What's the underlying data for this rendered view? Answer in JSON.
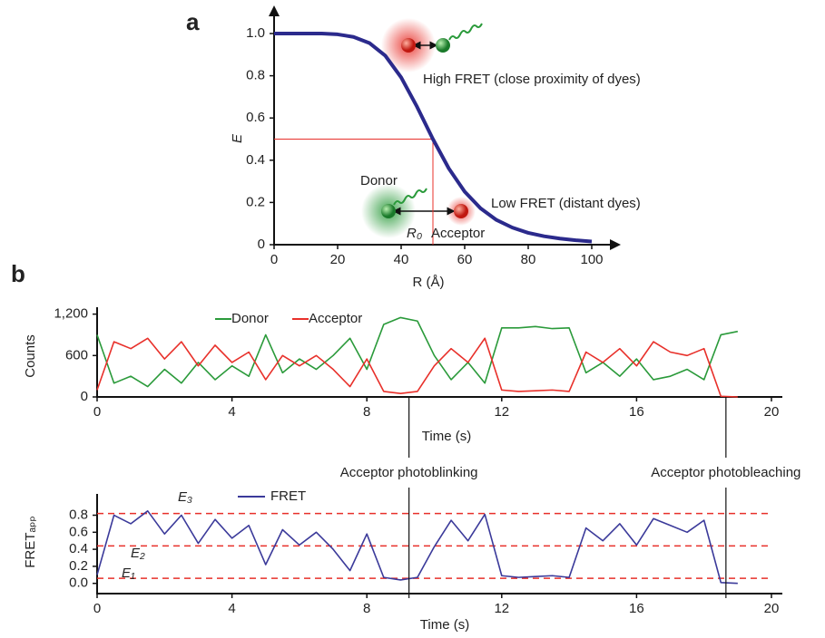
{
  "chart_data": [
    {
      "type": "line",
      "panel": "a",
      "x_label": "R (Å)",
      "y_label": "E",
      "x": [
        0,
        5,
        10,
        15,
        20,
        25,
        30,
        35,
        40,
        45,
        50,
        55,
        60,
        65,
        70,
        75,
        80,
        85,
        90,
        95,
        100
      ],
      "series": [
        {
          "name": "E",
          "color": "#2b2a8c",
          "values": [
            1,
            1,
            1,
            1,
            0.996,
            0.984,
            0.955,
            0.895,
            0.792,
            0.653,
            0.5,
            0.361,
            0.251,
            0.172,
            0.117,
            0.081,
            0.056,
            0.04,
            0.029,
            0.021,
            0.015
          ]
        }
      ],
      "xlim": [
        0,
        100
      ],
      "xticks": [
        0,
        20,
        40,
        60,
        80,
        100
      ],
      "ylim": [
        0,
        1
      ],
      "yticks": [
        0,
        0.2,
        0.4,
        0.6,
        0.8,
        {
          "value": 1,
          "label": "1.0"
        }
      ],
      "reference": {
        "x": 50,
        "y": 0.5,
        "color": "#e8302a"
      },
      "annotations": [
        "High FRET (close proximity of dyes)",
        "Donor",
        "Low FRET (distant dyes)",
        "R₀",
        "Acceptor"
      ]
    },
    {
      "type": "line",
      "panel": "b",
      "x_label": "Time (s)",
      "y_label": "Counts",
      "x": [
        0,
        0.5,
        1,
        1.5,
        2,
        2.5,
        3,
        3.5,
        4,
        4.5,
        5,
        5.5,
        6,
        6.5,
        7,
        7.5,
        8,
        8.5,
        9,
        9.5,
        10,
        10.5,
        11,
        11.5,
        12,
        12.5,
        13,
        13.5,
        14,
        14.5,
        15,
        15.5,
        16,
        16.5,
        17,
        17.5,
        18,
        18.5,
        19
      ],
      "series": [
        {
          "name": "Donor",
          "color": "#2a9a3a",
          "values": [
            900,
            200,
            300,
            150,
            400,
            200,
            500,
            250,
            450,
            300,
            900,
            350,
            550,
            400,
            600,
            850,
            400,
            1050,
            1150,
            1100,
            600,
            250,
            500,
            200,
            1000,
            1000,
            1020,
            990,
            1000,
            350,
            500,
            300,
            550,
            250,
            300,
            400,
            250,
            900,
            950
          ]
        },
        {
          "name": "Acceptor",
          "color": "#e8302a",
          "values": [
            100,
            800,
            700,
            850,
            550,
            800,
            450,
            750,
            500,
            650,
            250,
            600,
            450,
            600,
            400,
            150,
            550,
            80,
            50,
            80,
            450,
            700,
            500,
            850,
            100,
            80,
            90,
            100,
            80,
            650,
            500,
            700,
            450,
            800,
            650,
            600,
            700,
            10,
            0
          ]
        }
      ],
      "xlim": [
        0,
        20
      ],
      "xticks": [
        0,
        4,
        8,
        12,
        16,
        20
      ],
      "ylim": [
        0,
        1300
      ],
      "yticks": [
        0,
        600,
        {
          "value": 1200,
          "label": "1,200"
        }
      ],
      "annotations": [
        {
          "text": "Acceptor photoblinking",
          "x": 9.25
        },
        {
          "text": "Acceptor photobleaching",
          "x": 18.65
        }
      ]
    },
    {
      "type": "line",
      "x_label": "Time (s)",
      "y_label": "FRETₐₚₚ",
      "x": [
        0,
        0.5,
        1,
        1.5,
        2,
        2.5,
        3,
        3.5,
        4,
        4.5,
        5,
        5.5,
        6,
        6.5,
        7,
        7.5,
        8,
        8.5,
        9,
        9.5,
        10,
        10.5,
        11,
        11.5,
        12,
        12.5,
        13,
        13.5,
        14,
        14.5,
        15,
        15.5,
        16,
        16.5,
        17,
        17.5,
        18,
        18.5,
        19
      ],
      "series": [
        {
          "name": "FRET",
          "color": "#3b3a9a",
          "values": [
            0.1,
            0.8,
            0.7,
            0.85,
            0.58,
            0.8,
            0.47,
            0.75,
            0.53,
            0.68,
            0.22,
            0.63,
            0.45,
            0.6,
            0.4,
            0.15,
            0.58,
            0.07,
            0.04,
            0.07,
            0.43,
            0.74,
            0.5,
            0.81,
            0.09,
            0.07,
            0.08,
            0.09,
            0.07,
            0.65,
            0.5,
            0.7,
            0.45,
            0.76,
            0.68,
            0.6,
            0.74,
            0.01,
            0
          ]
        }
      ],
      "xlim": [
        0,
        20
      ],
      "xticks": [
        0,
        4,
        8,
        12,
        16,
        20
      ],
      "ylim": [
        -0.12,
        1.05
      ],
      "yticks": [
        {
          "value": 0,
          "label": "0.0"
        },
        0.2,
        0.4,
        0.6,
        0.8
      ],
      "levels": [
        {
          "label": "E₁",
          "value": 0.06
        },
        {
          "label": "E₂",
          "value": 0.44
        },
        {
          "label": "E₃",
          "value": 0.82
        }
      ],
      "level_color": "#e8302a"
    }
  ]
}
